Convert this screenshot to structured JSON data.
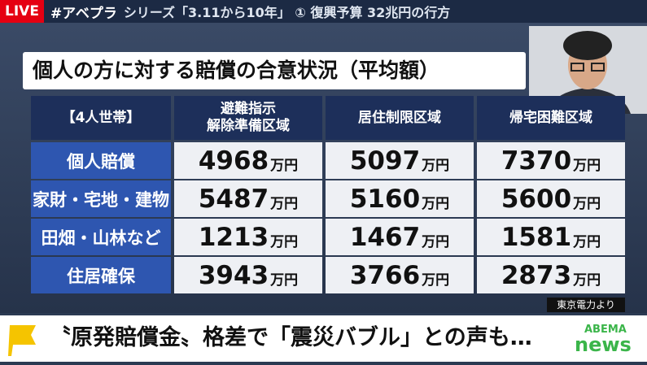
{
  "header": {
    "live": "LIVE",
    "hashtag": "#アベプラ",
    "series": "シリーズ「3.11から10年」 ① 復興予算 32兆円の行方"
  },
  "table": {
    "title": "個人の方に対する賠償の合意状況（平均額）",
    "columns": [
      "【4人世帯】",
      [
        "避難指示",
        "解除準備区域"
      ],
      "居住制限区域",
      "帰宅困難区域"
    ],
    "unit": "万円",
    "rows": [
      {
        "label": "個人賠償",
        "values": [
          4968,
          5097,
          7370
        ]
      },
      {
        "label": "家財・宅地・建物",
        "values": [
          5487,
          5160,
          5600
        ]
      },
      {
        "label": "田畑・山林など",
        "values": [
          1213,
          1467,
          1581
        ]
      },
      {
        "label": "住居確保",
        "values": [
          3943,
          3766,
          2873
        ]
      }
    ],
    "source": "東京電力より"
  },
  "caption": "〝原発賠償金〟格差で「震災バブル」との声も…",
  "logo": {
    "brand": "ABEMA",
    "sub": "news"
  }
}
